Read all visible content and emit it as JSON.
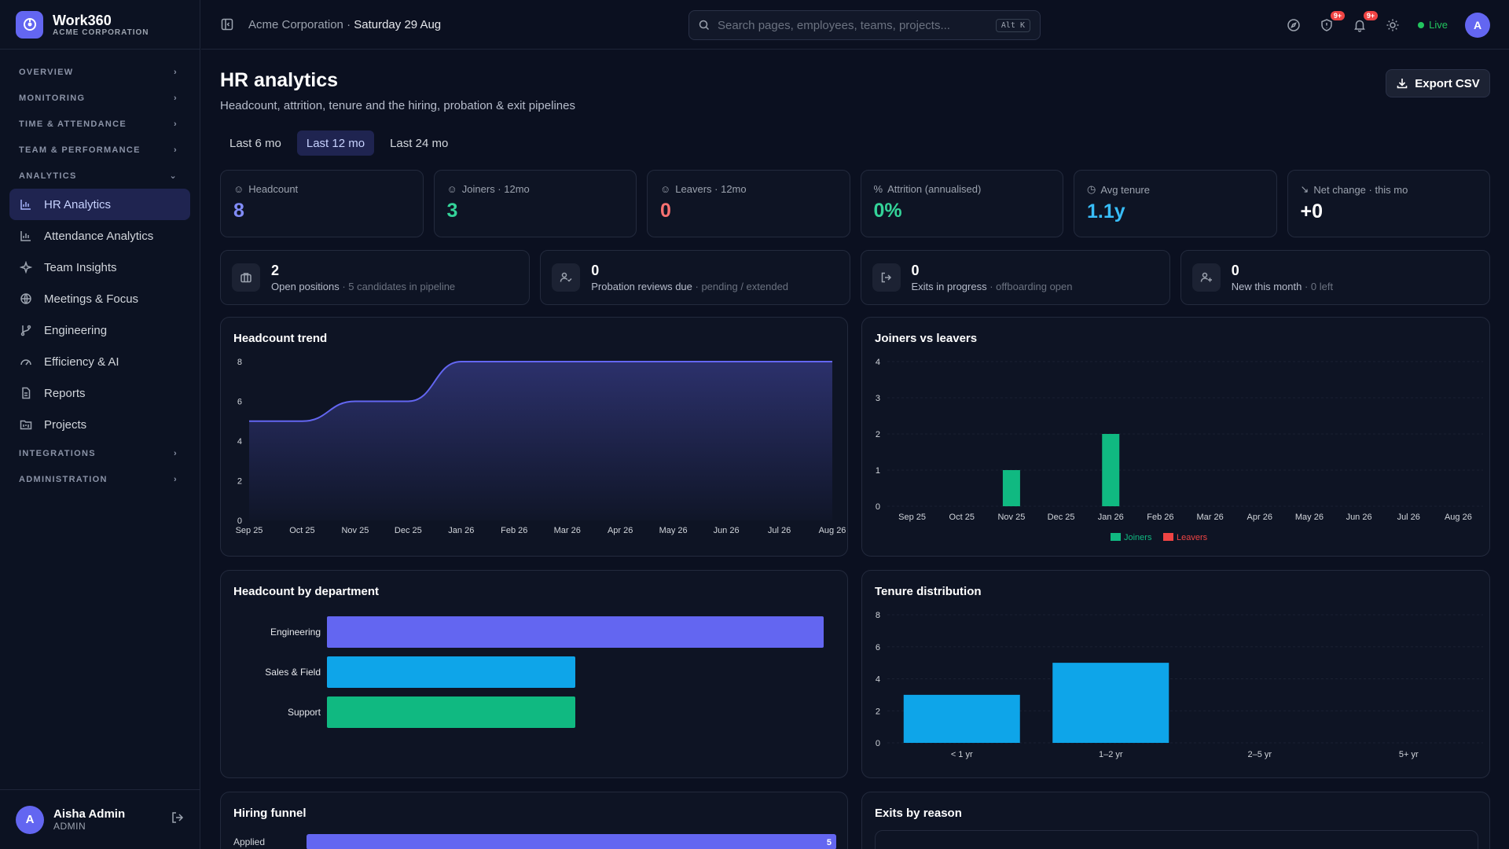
{
  "brand": {
    "name": "Work360",
    "org": "ACME CORPORATION"
  },
  "nav": {
    "sections": {
      "overview": "OVERVIEW",
      "monitoring": "MONITORING",
      "time": "TIME & ATTENDANCE",
      "team": "TEAM & PERFORMANCE",
      "analytics": "ANALYTICS",
      "integrations": "INTEGRATIONS",
      "administration": "ADMINISTRATION"
    },
    "items": [
      "HR Analytics",
      "Attendance Analytics",
      "Team Insights",
      "Meetings & Focus",
      "Engineering",
      "Efficiency & AI",
      "Reports",
      "Projects"
    ]
  },
  "user": {
    "initial": "A",
    "name": "Aisha Admin",
    "role": "ADMIN"
  },
  "topbar": {
    "org": "Acme Corporation",
    "separator": "·",
    "date": "Saturday 29 Aug",
    "search_placeholder": "Search pages, employees, teams, projects...",
    "shortcut": "Alt K",
    "badge1": "9+",
    "badge2": "9+",
    "live": "Live",
    "avatar": "A"
  },
  "page": {
    "title": "HR analytics",
    "subtitle": "Headcount, attrition, tenure and the hiring, probation & exit pipelines",
    "export": "Export CSV",
    "ranges": [
      "Last 6 mo",
      "Last 12 mo",
      "Last 24 mo"
    ]
  },
  "kpis": [
    {
      "label": "Headcount",
      "value": "8",
      "color": "#818cf8"
    },
    {
      "label": "Joiners · 12mo",
      "value": "3",
      "color": "#34d399"
    },
    {
      "label": "Leavers · 12mo",
      "value": "0",
      "color": "#f87171"
    },
    {
      "label": "Attrition (annualised)",
      "value": "0%",
      "color": "#34d399"
    },
    {
      "label": "Avg tenure",
      "value": "1.1y",
      "color": "#38bdf8"
    },
    {
      "label": "Net change · this mo",
      "value": "+0",
      "color": "#ffffff"
    }
  ],
  "pipelines": [
    {
      "value": "2",
      "label": "Open positions",
      "note": " · 5 candidates in pipeline"
    },
    {
      "value": "0",
      "label": "Probation reviews due",
      "note": " · pending / extended"
    },
    {
      "value": "0",
      "label": "Exits in progress",
      "note": " · offboarding open"
    },
    {
      "value": "0",
      "label": "New this month",
      "note": " · 0 left"
    }
  ],
  "cards": {
    "headcount_trend": "Headcount trend",
    "joiners_leavers": "Joiners vs leavers",
    "by_department": "Headcount by department",
    "tenure": "Tenure distribution",
    "hiring_funnel": "Hiring funnel",
    "exits": "Exits by reason"
  },
  "chart_data": [
    {
      "type": "area",
      "title": "Headcount trend",
      "x": [
        "Sep 25",
        "Oct 25",
        "Nov 25",
        "Dec 25",
        "Jan 26",
        "Feb 26",
        "Mar 26",
        "Apr 26",
        "May 26",
        "Jun 26",
        "Jul 26",
        "Aug 26"
      ],
      "values": [
        5,
        5,
        6,
        6,
        8,
        8,
        8,
        8,
        8,
        8,
        8,
        8
      ],
      "yticks": [
        0,
        2,
        4,
        6,
        8
      ],
      "ylim": [
        0,
        8
      ],
      "color": "#6366f1"
    },
    {
      "type": "bar",
      "title": "Joiners vs leavers",
      "categories": [
        "Sep 25",
        "Oct 25",
        "Nov 25",
        "Dec 25",
        "Jan 26",
        "Feb 26",
        "Mar 26",
        "Apr 26",
        "May 26",
        "Jun 26",
        "Jul 26",
        "Aug 26"
      ],
      "series": [
        {
          "name": "Joiners",
          "values": [
            0,
            0,
            1,
            0,
            2,
            0,
            0,
            0,
            0,
            0,
            0,
            0
          ],
          "color": "#10b981"
        },
        {
          "name": "Leavers",
          "values": [
            0,
            0,
            0,
            0,
            0,
            0,
            0,
            0,
            0,
            0,
            0,
            0
          ],
          "color": "#ef4444"
        }
      ],
      "yticks": [
        0,
        1,
        2,
        3,
        4
      ],
      "ylim": [
        0,
        4
      ],
      "legend": "bottom"
    },
    {
      "type": "bar",
      "orientation": "horizontal",
      "title": "Headcount by department",
      "categories": [
        "Engineering",
        "Sales & Field",
        "Support"
      ],
      "values": [
        4,
        2,
        2
      ],
      "colors": [
        "#6366f1",
        "#0ea5e9",
        "#10b981"
      ]
    },
    {
      "type": "bar",
      "title": "Tenure distribution",
      "categories": [
        "< 1 yr",
        "1–2 yr",
        "2–5 yr",
        "5+ yr"
      ],
      "values": [
        3,
        5,
        0,
        0
      ],
      "yticks": [
        0,
        2,
        4,
        6,
        8
      ],
      "ylim": [
        0,
        8
      ],
      "color": "#0ea5e9"
    },
    {
      "type": "bar",
      "orientation": "horizontal",
      "title": "Hiring funnel",
      "categories": [
        "Applied"
      ],
      "values": [
        5
      ],
      "value_labels": [
        "5"
      ],
      "color": "#6366f1"
    }
  ]
}
